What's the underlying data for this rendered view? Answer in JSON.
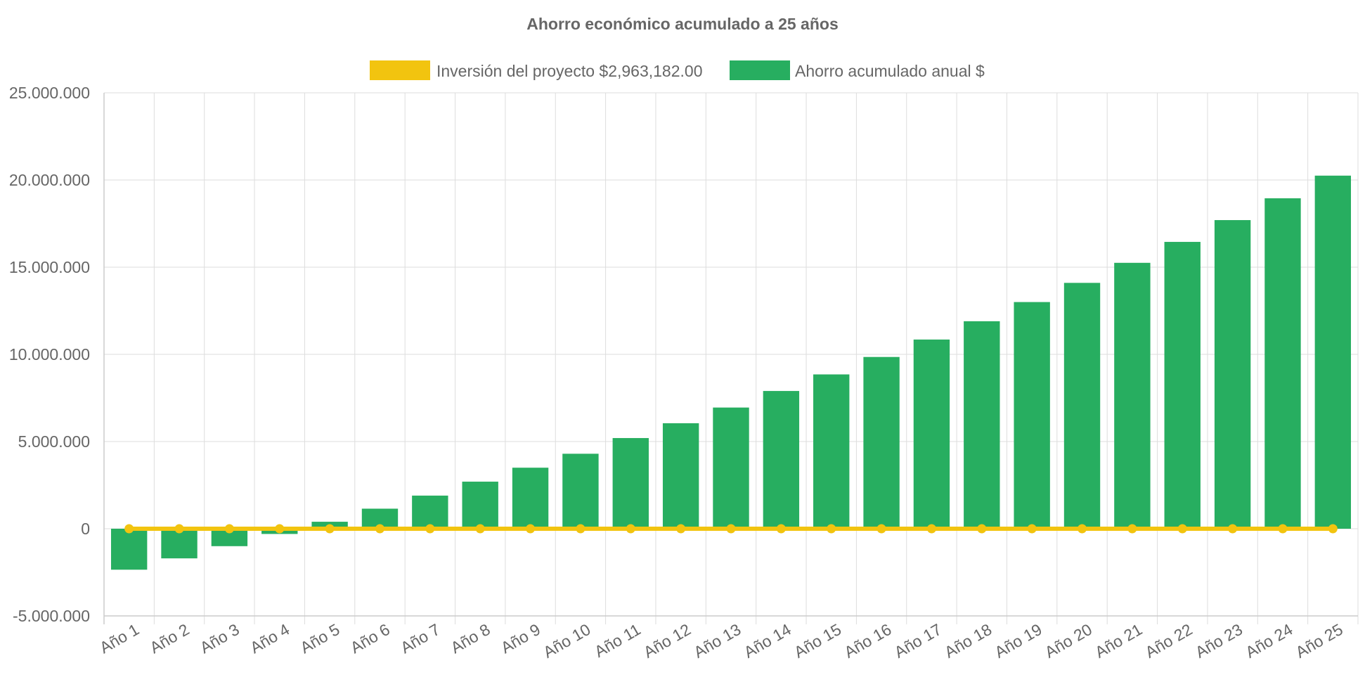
{
  "chart_data": {
    "type": "bar",
    "title": "Ahorro económico acumulado a 25 años",
    "categories": [
      "Año 1",
      "Año 2",
      "Año 3",
      "Año 4",
      "Año 5",
      "Año 6",
      "Año 7",
      "Año 8",
      "Año 9",
      "Año 10",
      "Año 11",
      "Año 12",
      "Año 13",
      "Año 14",
      "Año 15",
      "Año 16",
      "Año 17",
      "Año 18",
      "Año 19",
      "Año 20",
      "Año 21",
      "Año 22",
      "Año 23",
      "Año 24",
      "Año 25"
    ],
    "series": [
      {
        "name": "Inversión del proyecto $2,963,182.00",
        "type": "line",
        "color": "#f2c40f",
        "values": [
          0,
          0,
          0,
          0,
          0,
          0,
          0,
          0,
          0,
          0,
          0,
          0,
          0,
          0,
          0,
          0,
          0,
          0,
          0,
          0,
          0,
          0,
          0,
          0,
          0
        ]
      },
      {
        "name": "Ahorro acumulado anual $",
        "type": "bar",
        "color": "#27ae60",
        "values": [
          -2350000,
          -1700000,
          -1000000,
          -300000,
          400000,
          1150000,
          1900000,
          2700000,
          3500000,
          4300000,
          5200000,
          6050000,
          6950000,
          7900000,
          8850000,
          9850000,
          10850000,
          11900000,
          13000000,
          14100000,
          15250000,
          16450000,
          17700000,
          18950000,
          20250000
        ]
      }
    ],
    "ylim": [
      -5000000,
      25000000
    ],
    "y_ticks": [
      25000000,
      20000000,
      15000000,
      10000000,
      5000000,
      0,
      -5000000
    ],
    "y_tick_labels": [
      "25.000.000",
      "20.000.000",
      "15.000.000",
      "10.000.000",
      "5.000.000",
      "0",
      "-5.000.000"
    ],
    "xlabel": "",
    "ylabel": "",
    "grid": true,
    "legend_position": "top"
  }
}
